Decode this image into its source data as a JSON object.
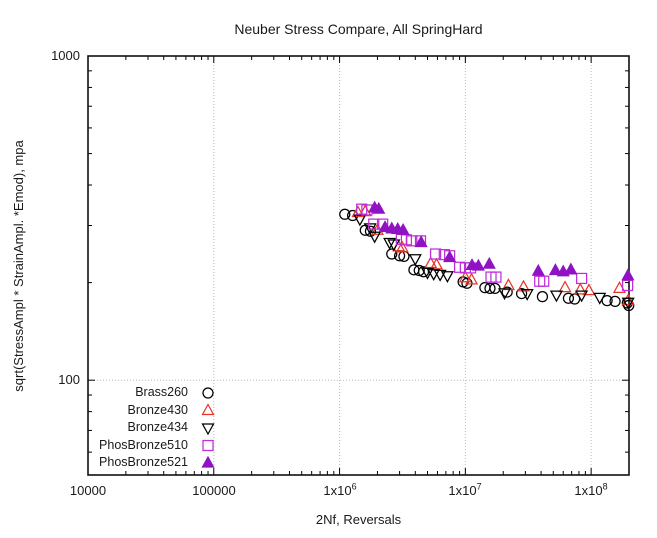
{
  "title": "Neuber Stress Compare, All SpringHard",
  "colors": {
    "black": "#000000",
    "red": "#e8362a",
    "violet_open": "#bf2fd9",
    "violet_fill": "#9013c3",
    "grid": "#bbbbbb",
    "border": "#111111",
    "text": "#1a1a1a"
  },
  "chart_data": {
    "type": "scatter",
    "title": "Neuber Stress Compare, All SpringHard",
    "xlabel": "2Nf, Reversals",
    "ylabel": "sqrt(StressAmpl * StrainAmpl. *Emod), mpa",
    "x_scale": "log",
    "y_scale": "log",
    "xlim": [
      10000,
      200000000
    ],
    "ylim": [
      51,
      1000
    ],
    "grid": {
      "x": [
        100000,
        1000000,
        10000000,
        100000000
      ],
      "y": [
        100
      ]
    },
    "x_ticks": {
      "major": [
        10000,
        100000,
        1000000,
        10000000,
        100000000
      ],
      "labels": [
        {
          "text": "10000",
          "exp": ""
        },
        {
          "text": "100000",
          "exp": ""
        },
        {
          "text": "1x10",
          "exp": "6"
        },
        {
          "text": "1x10",
          "exp": "7"
        },
        {
          "text": "1x10",
          "exp": "8"
        }
      ]
    },
    "y_ticks": {
      "major": [
        100,
        1000
      ],
      "labels": [
        {
          "text": "1000"
        },
        {
          "text": "100"
        }
      ],
      "minor": [
        60,
        70,
        80,
        90,
        200,
        300,
        400,
        500,
        600,
        700,
        800,
        900
      ]
    },
    "legend_position": "inside-bottom-left",
    "series": [
      {
        "name": "Brass260",
        "marker": "circle-open",
        "color": "#000000",
        "points": [
          [
            1100000,
            325
          ],
          [
            1270000,
            322
          ],
          [
            1600000,
            290
          ],
          [
            1760000,
            288
          ],
          [
            2600000,
            245
          ],
          [
            3000000,
            242
          ],
          [
            3250000,
            241
          ],
          [
            3900000,
            219
          ],
          [
            4300000,
            218
          ],
          [
            4650000,
            216
          ],
          [
            9600000,
            201
          ],
          [
            10300000,
            199
          ],
          [
            14300000,
            193
          ],
          [
            15700000,
            192
          ],
          [
            17200000,
            192
          ],
          [
            21500000,
            187
          ],
          [
            28000000,
            185
          ],
          [
            41000000,
            181
          ],
          [
            66000000,
            179
          ],
          [
            74000000,
            178
          ],
          [
            134000000,
            176
          ],
          [
            155000000,
            175
          ],
          [
            194000000,
            173
          ],
          [
            199000000,
            170
          ]
        ]
      },
      {
        "name": "Bronze430",
        "marker": "triangle-up-open",
        "color": "#e8362a",
        "points": [
          [
            1400000,
            329
          ],
          [
            1600000,
            331
          ],
          [
            2000000,
            290
          ],
          [
            2950000,
            258
          ],
          [
            3150000,
            256
          ],
          [
            5300000,
            229
          ],
          [
            5900000,
            227
          ],
          [
            10000000,
            207
          ],
          [
            11200000,
            204
          ],
          [
            22000000,
            196
          ],
          [
            29000000,
            194
          ],
          [
            62000000,
            193
          ],
          [
            82000000,
            190
          ],
          [
            96000000,
            189
          ],
          [
            168000000,
            192
          ],
          [
            197000000,
            176
          ]
        ]
      },
      {
        "name": "Bronze434",
        "marker": "triangle-down-open",
        "color": "#000000",
        "points": [
          [
            1450000,
            314
          ],
          [
            1750000,
            295
          ],
          [
            1900000,
            278
          ],
          [
            2500000,
            266
          ],
          [
            2700000,
            263
          ],
          [
            4000000,
            237
          ],
          [
            5000000,
            215
          ],
          [
            5600000,
            213
          ],
          [
            6300000,
            212
          ],
          [
            7200000,
            210
          ],
          [
            20500000,
            186
          ],
          [
            31000000,
            185
          ],
          [
            53000000,
            183
          ],
          [
            84000000,
            183
          ],
          [
            117000000,
            180
          ],
          [
            197000000,
            174
          ]
        ]
      },
      {
        "name": "PhosBronze510",
        "marker": "square-open",
        "color": "#bf2fd9",
        "points": [
          [
            1500000,
            337
          ],
          [
            1650000,
            335
          ],
          [
            1870000,
            303
          ],
          [
            2200000,
            303
          ],
          [
            3100000,
            272
          ],
          [
            3400000,
            271
          ],
          [
            3750000,
            269
          ],
          [
            4400000,
            269
          ],
          [
            5800000,
            245
          ],
          [
            6800000,
            244
          ],
          [
            7500000,
            242
          ],
          [
            9000000,
            223
          ],
          [
            10000000,
            222
          ],
          [
            11000000,
            222
          ],
          [
            16000000,
            208
          ],
          [
            17500000,
            208
          ],
          [
            39000000,
            202
          ],
          [
            42000000,
            202
          ],
          [
            84000000,
            206
          ],
          [
            195000000,
            196
          ]
        ]
      },
      {
        "name": "PhosBronze521",
        "marker": "triangle-up-filled",
        "color": "#9013c3",
        "points": [
          [
            1900000,
            340
          ],
          [
            2050000,
            337
          ],
          [
            2300000,
            296
          ],
          [
            2600000,
            293
          ],
          [
            2900000,
            292
          ],
          [
            3200000,
            290
          ],
          [
            4450000,
            266
          ],
          [
            7500000,
            239
          ],
          [
            11300000,
            226
          ],
          [
            12700000,
            225
          ],
          [
            15500000,
            228
          ],
          [
            38000000,
            217
          ],
          [
            52000000,
            218
          ],
          [
            60000000,
            216
          ],
          [
            69000000,
            219
          ],
          [
            196000000,
            210
          ]
        ]
      }
    ]
  }
}
